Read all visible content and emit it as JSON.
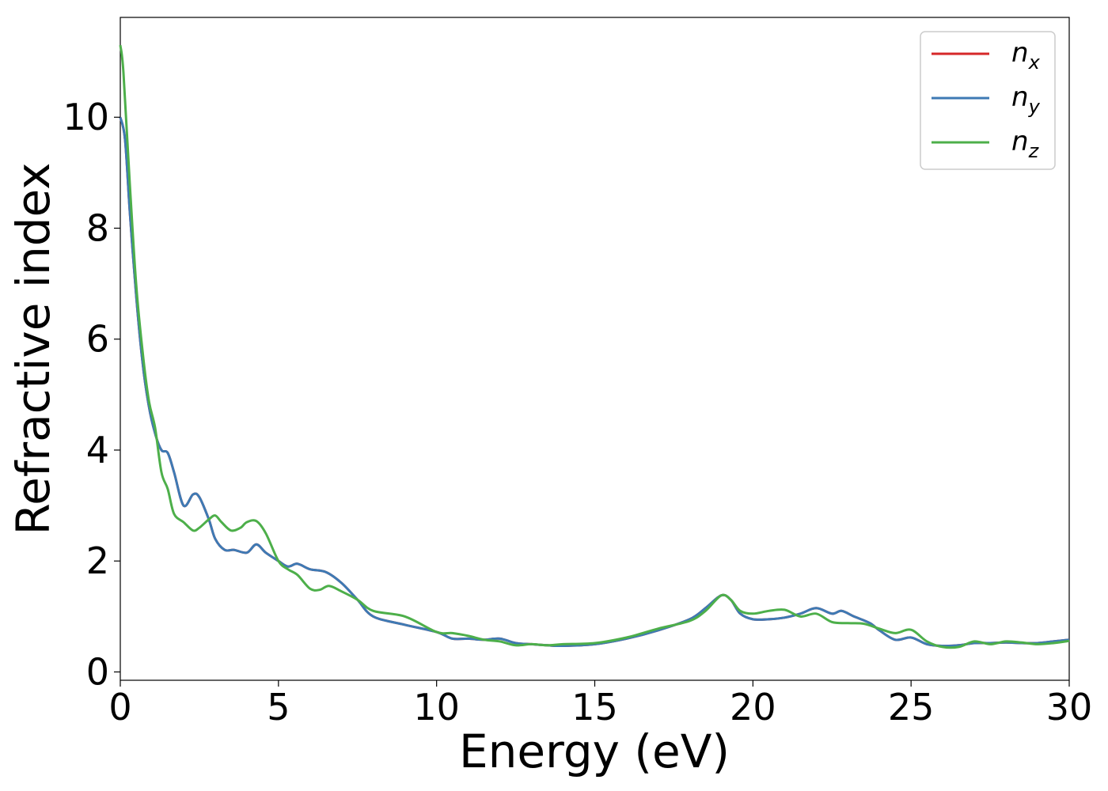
{
  "chart_data": {
    "type": "line",
    "title": "",
    "xlabel": "Energy (eV)",
    "ylabel": "Refractive index",
    "xlim": [
      0,
      30
    ],
    "ylim": [
      -0.15,
      11.8
    ],
    "xticks": [
      0,
      5,
      10,
      15,
      20,
      25,
      30
    ],
    "yticks": [
      0,
      2,
      4,
      6,
      8,
      10
    ],
    "grid": false,
    "legend": "top-right",
    "series": [
      {
        "name": "n",
        "sub": "x",
        "color": "#d62728",
        "x": [
          0,
          0.15,
          0.3,
          0.5,
          0.7,
          0.9,
          1.1,
          1.3,
          1.5,
          1.7,
          2.0,
          2.3,
          2.5,
          2.8,
          3.0,
          3.3,
          3.6,
          4.0,
          4.3,
          4.6,
          5.0,
          5.3,
          5.6,
          6.0,
          6.5,
          7.0,
          7.5,
          8.0,
          9.0,
          10.0,
          10.5,
          11.0,
          11.5,
          12.0,
          12.5,
          13.0,
          13.5,
          14.0,
          15.0,
          16.0,
          17.0,
          18.0,
          18.5,
          19.0,
          19.3,
          19.6,
          20.0,
          20.5,
          21.0,
          21.5,
          22.0,
          22.5,
          22.8,
          23.2,
          23.7,
          24.0,
          24.5,
          25.0,
          25.5,
          26.0,
          26.5,
          27.0,
          27.5,
          28.0,
          28.5,
          29.0,
          29.5,
          30.0
        ],
        "y": [
          10.0,
          9.6,
          8.3,
          6.8,
          5.6,
          4.8,
          4.3,
          4.0,
          3.95,
          3.6,
          3.0,
          3.2,
          3.15,
          2.75,
          2.4,
          2.2,
          2.2,
          2.15,
          2.3,
          2.15,
          2.0,
          1.9,
          1.95,
          1.85,
          1.8,
          1.6,
          1.3,
          1.0,
          0.85,
          0.72,
          0.6,
          0.6,
          0.58,
          0.6,
          0.52,
          0.5,
          0.48,
          0.47,
          0.5,
          0.6,
          0.75,
          0.95,
          1.15,
          1.38,
          1.3,
          1.05,
          0.95,
          0.95,
          0.98,
          1.05,
          1.15,
          1.05,
          1.1,
          1.0,
          0.88,
          0.75,
          0.58,
          0.62,
          0.5,
          0.47,
          0.48,
          0.52,
          0.52,
          0.53,
          0.52,
          0.52,
          0.55,
          0.58
        ]
      },
      {
        "name": "n",
        "sub": "y",
        "color": "#3e7ab4",
        "x": [
          0,
          0.15,
          0.3,
          0.5,
          0.7,
          0.9,
          1.1,
          1.3,
          1.5,
          1.7,
          2.0,
          2.3,
          2.5,
          2.8,
          3.0,
          3.3,
          3.6,
          4.0,
          4.3,
          4.6,
          5.0,
          5.3,
          5.6,
          6.0,
          6.5,
          7.0,
          7.5,
          8.0,
          9.0,
          10.0,
          10.5,
          11.0,
          11.5,
          12.0,
          12.5,
          13.0,
          13.5,
          14.0,
          15.0,
          16.0,
          17.0,
          18.0,
          18.5,
          19.0,
          19.3,
          19.6,
          20.0,
          20.5,
          21.0,
          21.5,
          22.0,
          22.5,
          22.8,
          23.2,
          23.7,
          24.0,
          24.5,
          25.0,
          25.5,
          26.0,
          26.5,
          27.0,
          27.5,
          28.0,
          28.5,
          29.0,
          29.5,
          30.0
        ],
        "y": [
          10.0,
          9.6,
          8.3,
          6.8,
          5.6,
          4.8,
          4.3,
          4.0,
          3.95,
          3.6,
          3.0,
          3.2,
          3.15,
          2.75,
          2.4,
          2.2,
          2.2,
          2.15,
          2.3,
          2.15,
          2.0,
          1.9,
          1.95,
          1.85,
          1.8,
          1.6,
          1.3,
          1.0,
          0.85,
          0.72,
          0.6,
          0.6,
          0.58,
          0.6,
          0.52,
          0.5,
          0.48,
          0.47,
          0.5,
          0.6,
          0.75,
          0.95,
          1.15,
          1.38,
          1.3,
          1.05,
          0.95,
          0.95,
          0.98,
          1.05,
          1.15,
          1.05,
          1.1,
          1.0,
          0.88,
          0.75,
          0.58,
          0.62,
          0.5,
          0.47,
          0.48,
          0.52,
          0.52,
          0.53,
          0.52,
          0.52,
          0.55,
          0.58
        ]
      },
      {
        "name": "n",
        "sub": "z",
        "color": "#4daf4a",
        "x": [
          0,
          0.1,
          0.3,
          0.5,
          0.7,
          0.9,
          1.1,
          1.3,
          1.5,
          1.7,
          2.0,
          2.3,
          2.5,
          2.8,
          3.0,
          3.2,
          3.5,
          3.8,
          4.0,
          4.3,
          4.6,
          5.0,
          5.3,
          5.6,
          6.0,
          6.3,
          6.6,
          7.0,
          7.5,
          8.0,
          9.0,
          10.0,
          10.5,
          11.0,
          11.5,
          12.0,
          12.5,
          13.0,
          13.5,
          14.0,
          15.0,
          16.0,
          17.0,
          18.0,
          18.5,
          19.0,
          19.3,
          19.6,
          20.0,
          20.5,
          21.0,
          21.5,
          22.0,
          22.5,
          23.0,
          23.5,
          24.0,
          24.5,
          25.0,
          25.5,
          26.0,
          26.5,
          27.0,
          27.5,
          28.0,
          28.5,
          29.0,
          29.5,
          30.0
        ],
        "y": [
          11.3,
          10.8,
          8.8,
          7.0,
          5.8,
          4.9,
          4.4,
          3.6,
          3.3,
          2.85,
          2.7,
          2.55,
          2.6,
          2.75,
          2.82,
          2.7,
          2.55,
          2.6,
          2.7,
          2.72,
          2.5,
          2.0,
          1.85,
          1.75,
          1.5,
          1.48,
          1.55,
          1.45,
          1.3,
          1.1,
          1.0,
          0.72,
          0.7,
          0.65,
          0.58,
          0.55,
          0.48,
          0.5,
          0.48,
          0.5,
          0.52,
          0.62,
          0.78,
          0.92,
          1.1,
          1.38,
          1.3,
          1.1,
          1.05,
          1.1,
          1.12,
          1.0,
          1.05,
          0.9,
          0.88,
          0.87,
          0.78,
          0.7,
          0.76,
          0.55,
          0.45,
          0.45,
          0.55,
          0.5,
          0.55,
          0.53,
          0.5,
          0.52,
          0.56
        ]
      }
    ]
  }
}
